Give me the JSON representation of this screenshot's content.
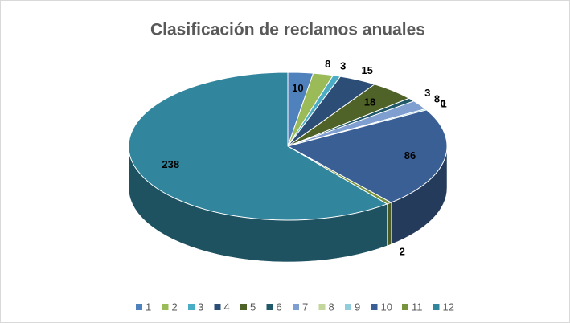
{
  "chart_data": {
    "type": "pie",
    "title": "Clasificación de reclamos anuales",
    "categories": [
      "1",
      "2",
      "3",
      "4",
      "5",
      "6",
      "7",
      "8",
      "9",
      "10",
      "11",
      "12"
    ],
    "values": [
      10,
      8,
      3,
      15,
      18,
      3,
      8,
      0,
      1,
      86,
      2,
      238
    ],
    "colors": [
      "#4f81bd",
      "#9bbb59",
      "#4bacc6",
      "#2c4d75",
      "#4f6228",
      "#215968",
      "#7f9fd0",
      "#c3d69b",
      "#93cddd",
      "#3a5f95",
      "#77933c",
      "#31859c"
    ],
    "legend": "bottom"
  }
}
